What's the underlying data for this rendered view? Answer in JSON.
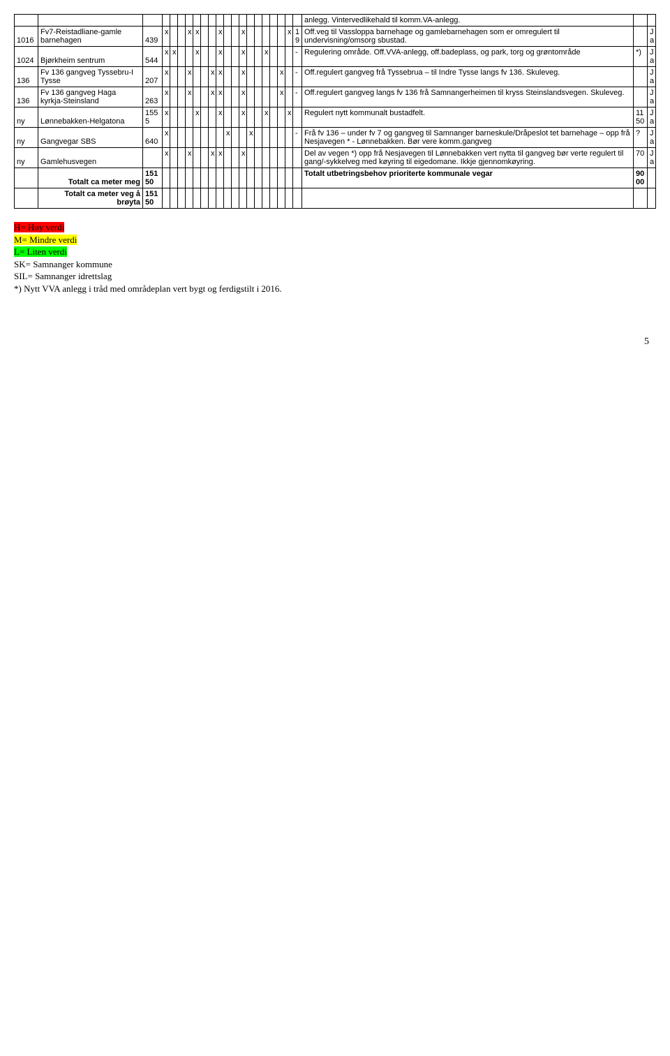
{
  "rows": [
    {
      "id": "",
      "name": "",
      "num": "",
      "flags": [
        "",
        "",
        "",
        "",
        "",
        "",
        "",
        "",
        "",
        "",
        "",
        "",
        "",
        "",
        "",
        "",
        ""
      ],
      "mark": "",
      "desc": "anlegg. Vintervedlikehald til komm.VA-anlegg.",
      "cost": "",
      "ja": ""
    },
    {
      "id": "1016",
      "name": "Fv7-Reistadliane-gamle barnehagen",
      "num": "439",
      "flags": [
        "x",
        "",
        "",
        "x",
        "x",
        "",
        "",
        "x",
        "",
        "",
        "x",
        "",
        "",
        "",
        "",
        "",
        "x"
      ],
      "mark": "1\n9",
      "desc": "Off.veg til Vassloppa barnehage og gamlebarnehagen som er omregulert til undervisning/omsorg sbustad.",
      "cost": "",
      "ja": "J\na"
    },
    {
      "id": "1024",
      "name": "Bjørkheim sentrum",
      "num": "544",
      "flags": [
        "x",
        "x",
        "",
        "",
        "x",
        "",
        "",
        "x",
        "",
        "",
        "x",
        "",
        "",
        "x",
        "",
        "",
        ""
      ],
      "mark": "-",
      "desc": "Regulering område. Off.VVA-anlegg, off.badeplass, og park, torg og grøntområde",
      "cost": "*)",
      "ja": "J\na"
    },
    {
      "id": "136",
      "name": "Fv 136 gangveg Tyssebru-I Tysse",
      "num": "207",
      "flags": [
        "x",
        "",
        "",
        "x",
        "",
        "",
        "x",
        "x",
        "",
        "",
        "x",
        "",
        "",
        "",
        "",
        "x",
        ""
      ],
      "mark": "-",
      "desc": "Off.regulert gangveg frå Tyssebrua – til Indre Tysse langs fv 136. Skuleveg.",
      "cost": "",
      "ja": "J\na"
    },
    {
      "id": "136",
      "name": "Fv 136 gangveg Haga kyrkja-Steinsland",
      "num": "263",
      "flags": [
        "x",
        "",
        "",
        "x",
        "",
        "",
        "x",
        "x",
        "",
        "",
        "x",
        "",
        "",
        "",
        "",
        "x",
        ""
      ],
      "mark": "-",
      "desc": "Off.regulert gangveg langs fv 136 frå Samnangerheimen til kryss Steinslandsvegen. Skuleveg.",
      "cost": "",
      "ja": "J\na"
    },
    {
      "id": "ny",
      "name": "Lønnebakken-Helgatona",
      "num": "155\n5",
      "flags": [
        "x",
        "",
        "",
        "",
        "x",
        "",
        "",
        "x",
        "",
        "",
        "x",
        "",
        "",
        "x",
        "",
        "",
        "x"
      ],
      "mark": "",
      "desc": "Regulert nytt kommunalt bustadfelt.",
      "cost": "11\n50",
      "ja": "J\na"
    },
    {
      "id": "ny",
      "name": "Gangvegar SBS",
      "num": "640",
      "flags": [
        "x",
        "",
        "",
        "",
        "",
        "",
        "",
        "",
        "x",
        "",
        "",
        "x",
        "",
        "",
        "",
        "",
        ""
      ],
      "mark": "-",
      "desc": "Frå  fv 136 – under fv 7 og gangveg til Samnanger barneskule/Dråpeslot tet barnehage – opp frå Nesjavegen * - Lønnebakken. Bør vere komm.gangveg",
      "cost": "?",
      "ja": "J\na"
    },
    {
      "id": "ny",
      "name": "Gamlehusvegen",
      "num": "",
      "flags": [
        "x",
        "",
        "",
        "x",
        "",
        "",
        "x",
        "x",
        "",
        "",
        "x",
        "",
        "",
        "",
        "",
        "",
        ""
      ],
      "mark": "",
      "desc": "Del av vegen *) opp frå Nesjavegen til Lønnebakken vert nytta til gangveg bør verte regulert til gang/-sykkelveg med køyring til eigedomane. Ikkje gjennomkøyring.",
      "cost": "70",
      "ja": "J\na"
    },
    {
      "id": "",
      "name": "Totalt ca meter meg",
      "nameBold": true,
      "num": "151\n50",
      "flags": [
        "",
        "",
        "",
        "",
        "",
        "",
        "",
        "",
        "",
        "",
        "",
        "",
        "",
        "",
        "",
        "",
        ""
      ],
      "mark": "",
      "desc": "Totalt utbetringsbehov prioriterte kommunale vegar",
      "descBold": true,
      "cost": "90\n00",
      "ja": ""
    },
    {
      "id": "",
      "name": "Totalt ca meter veg å brøyta",
      "nameBold": true,
      "num": "151\n50",
      "flags": [
        "",
        "",
        "",
        "",
        "",
        "",
        "",
        "",
        "",
        "",
        "",
        "",
        "",
        "",
        "",
        "",
        ""
      ],
      "mark": "",
      "desc": "",
      "cost": "",
      "ja": ""
    }
  ],
  "legend": {
    "l1": "H= Høy verdi",
    "l2": "M= Mindre verdi",
    "l3": "L= Liten verdi",
    "l4": "SK= Samnanger kommune",
    "l5": "SIL= Samnanger idrettslag",
    "l6": "*) Nytt VVA anlegg i tråd med områdeplan vert bygt og ferdigstilt i 2016."
  },
  "pageNum": "5",
  "style": {
    "colors": {
      "border": "#000000",
      "background": "#ffffff",
      "hl_red": "#ff0000",
      "hl_yellow": "#ffff00",
      "hl_green": "#00ff00"
    },
    "numFlagCols": 17
  }
}
